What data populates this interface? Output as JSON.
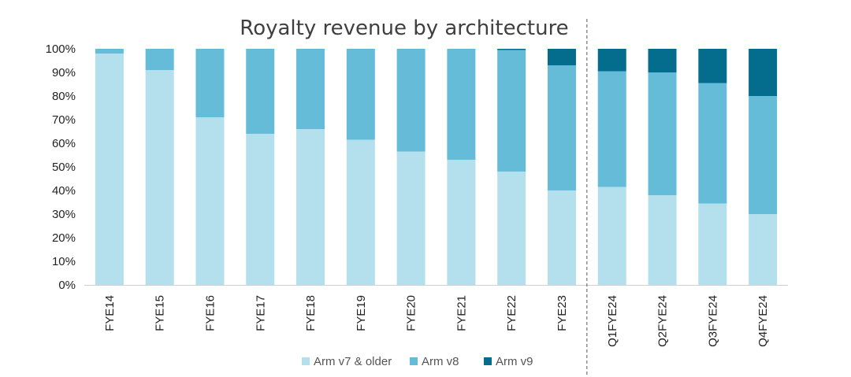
{
  "chart_data": {
    "type": "bar",
    "stacked": true,
    "percent": true,
    "title": "Royalty revenue by architecture",
    "categories": [
      "FYE14",
      "FYE15",
      "FYE16",
      "FYE17",
      "FYE18",
      "FYE19",
      "FYE20",
      "FYE21",
      "FYE22",
      "FYE23",
      "Q1FYE24",
      "Q2FYE24",
      "Q3FYE24",
      "Q4FYE24"
    ],
    "series": [
      {
        "name": "Arm v7 & older",
        "color": "#b4dfec",
        "values": [
          98,
          91,
          71,
          64,
          66,
          61.5,
          56.5,
          53,
          48,
          40,
          41.5,
          38,
          34.5,
          30
        ]
      },
      {
        "name": "Arm v8",
        "color": "#64bcd8",
        "values": [
          2,
          9,
          29,
          36,
          34,
          38.5,
          43.5,
          47,
          51.5,
          53,
          49,
          52,
          51,
          50
        ]
      },
      {
        "name": "Arm v9",
        "color": "#046d8d",
        "values": [
          0,
          0,
          0,
          0,
          0,
          0,
          0,
          0,
          0.5,
          7,
          9.5,
          10,
          14.5,
          20
        ]
      }
    ],
    "yticks": [
      "0%",
      "10%",
      "20%",
      "30%",
      "40%",
      "50%",
      "60%",
      "70%",
      "80%",
      "90%",
      "100%"
    ],
    "ylim": [
      0,
      100
    ],
    "divider_after": "FYE23",
    "grid": false,
    "legend_position": "bottom"
  }
}
